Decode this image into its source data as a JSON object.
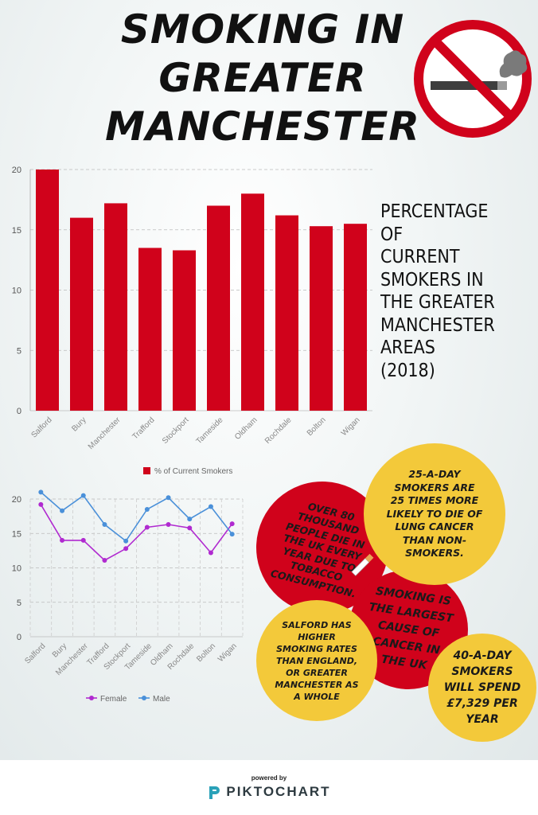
{
  "title": {
    "line1": "SMOKING IN",
    "line2": "GREATER",
    "line3": "MANCHESTER"
  },
  "no_smoking_sign": {
    "icon": "no-smoking-icon",
    "ring_color": "#d0021b"
  },
  "side_caption": {
    "lines": [
      "PERCENTAGE",
      "OF",
      "CURRENT",
      "SMOKERS IN",
      "THE GREATER",
      "MANCHESTER",
      "AREAS",
      "(2018)"
    ]
  },
  "chart_data": [
    {
      "type": "bar",
      "categories": [
        "Salford",
        "Bury",
        "Manchester",
        "Trafford",
        "Stockport",
        "Tameside",
        "Oldham",
        "Rochdale",
        "Bolton",
        "Wigan"
      ],
      "series": [
        {
          "name": "% of Current Smokers",
          "values": [
            20,
            16,
            17.2,
            13.5,
            13.3,
            17,
            18,
            16.2,
            15.3,
            15.5
          ],
          "color": "#d0021b"
        }
      ],
      "ylim": [
        0,
        20
      ],
      "yticks": [
        "0",
        "5",
        "10",
        "15",
        "20"
      ],
      "grid": true,
      "legend": "bottom"
    },
    {
      "type": "line",
      "categories": [
        "Salford",
        "Bury",
        "Manchester",
        "Trafford",
        "Stockport",
        "Tameside",
        "Oldham",
        "Rochdale",
        "Bolton",
        "Wigan"
      ],
      "series": [
        {
          "name": "Female",
          "values": [
            19.2,
            14,
            14,
            11.1,
            12.8,
            15.9,
            16.3,
            15.8,
            12.2,
            16.4
          ],
          "color": "#b02ad0"
        },
        {
          "name": "Male",
          "values": [
            21,
            18.3,
            20.5,
            16.3,
            13.9,
            18.5,
            20.2,
            17.1,
            18.9,
            14.9
          ],
          "color": "#4a90d9"
        }
      ],
      "ylim": [
        0,
        20
      ],
      "yticks": [
        "0",
        "5",
        "10",
        "15",
        "20"
      ],
      "grid": true,
      "legend": "bottom"
    }
  ],
  "facts": {
    "fact1": [
      "OVER 80",
      "THOUSAND",
      "PEOPLE DIE IN",
      "THE UK EVERY",
      "YEAR DUE TO",
      "TOBACCO",
      "CONSUMPTION."
    ],
    "fact2": [
      "25-A-DAY",
      "SMOKERS ARE",
      "25 TIMES MORE",
      "LIKELY TO DIE OF",
      "LUNG CANCER",
      "THAN NON-",
      "SMOKERS."
    ],
    "fact3": [
      "SMOKING IS",
      "THE LARGEST",
      "CAUSE OF",
      "CANCER IN",
      "THE UK"
    ],
    "fact4": [
      "SALFORD HAS",
      "HIGHER",
      "SMOKING RATES",
      "THAN ENGLAND,",
      "OR GREATER",
      "MANCHESTER AS",
      "A WHOLE"
    ],
    "fact5": [
      "40-A-DAY",
      "SMOKERS",
      "WILL SPEND",
      "£7,329 PER",
      "YEAR"
    ]
  },
  "colors": {
    "red": "#d0021b",
    "yellow": "#f3c93a"
  },
  "footer": {
    "powered_by": "powered by",
    "brand": "PIKTOCHART"
  }
}
